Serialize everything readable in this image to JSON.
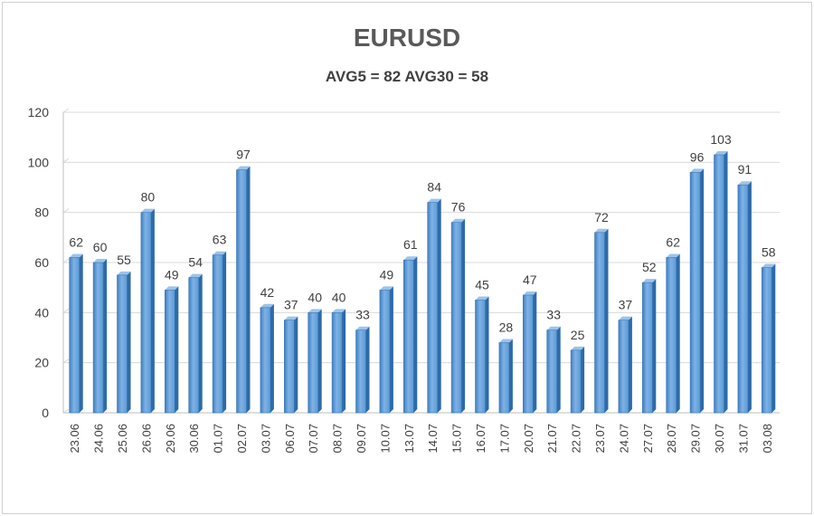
{
  "chart_data": {
    "type": "bar",
    "title": "EURUSD",
    "subtitle": "AVG5 = 82 AVG30 = 58",
    "xlabel": "",
    "ylabel": "",
    "ylim": [
      0,
      120
    ],
    "yticks": [
      0,
      20,
      40,
      60,
      80,
      100,
      120
    ],
    "grid": true,
    "legend": "none",
    "bar_color": "#5b9bd5",
    "bar_dark": "#2e6aa8",
    "categories": [
      "23.06",
      "24.06",
      "25.06",
      "26.06",
      "29.06",
      "30.06",
      "01.07",
      "02.07",
      "03.07",
      "06.07",
      "07.07",
      "08.07",
      "09.07",
      "10.07",
      "13.07",
      "14.07",
      "15.07",
      "16.07",
      "17.07",
      "20.07",
      "21.07",
      "22.07",
      "23.07",
      "24.07",
      "27.07",
      "28.07",
      "29.07",
      "30.07",
      "31.07",
      "03.08"
    ],
    "values": [
      62,
      60,
      55,
      80,
      49,
      54,
      63,
      97,
      42,
      37,
      40,
      40,
      33,
      49,
      61,
      84,
      76,
      45,
      28,
      47,
      33,
      25,
      72,
      37,
      52,
      62,
      96,
      103,
      91,
      58
    ]
  }
}
